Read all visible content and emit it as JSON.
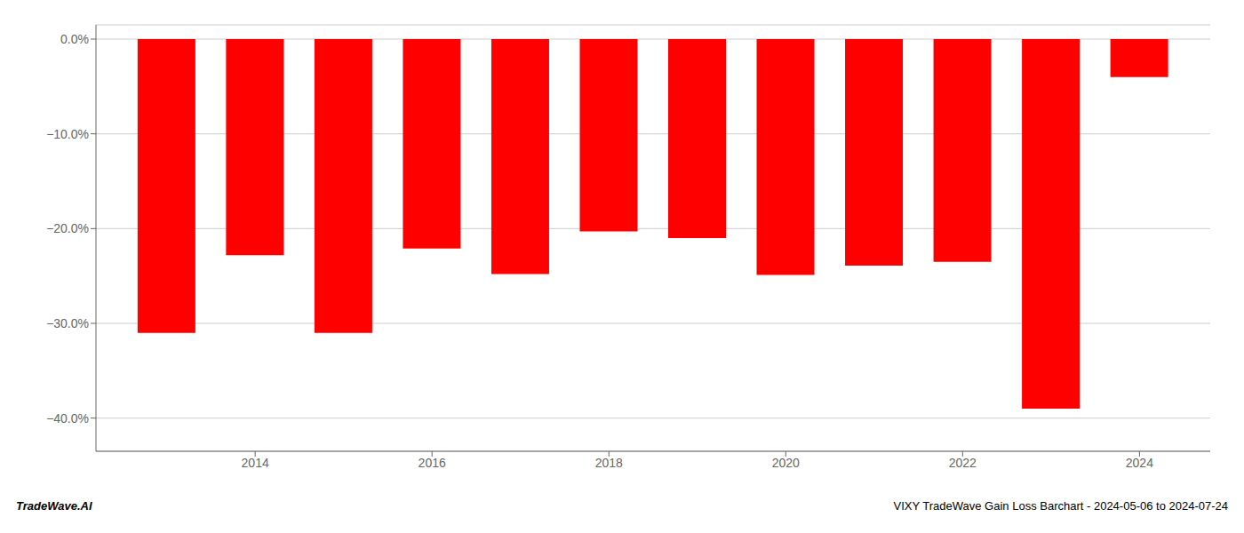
{
  "chart_data": {
    "type": "bar",
    "x": [
      2013,
      2014,
      2015,
      2016,
      2017,
      2018,
      2019,
      2020,
      2021,
      2022,
      2023,
      2024
    ],
    "values": [
      -0.31,
      -0.228,
      -0.31,
      -0.221,
      -0.248,
      -0.203,
      -0.21,
      -0.249,
      -0.239,
      -0.235,
      -0.39,
      -0.04
    ],
    "color": "#ff0000",
    "xlim": [
      2012.2,
      2024.8
    ],
    "xticks": [
      2014,
      2016,
      2018,
      2020,
      2022,
      2024
    ],
    "ylim": [
      -0.435,
      0.015
    ],
    "yticks": [
      {
        "value": 0.0,
        "label": "0.0%"
      },
      {
        "value": -0.1,
        "label": "−10.0%"
      },
      {
        "value": -0.2,
        "label": "−20.0%"
      },
      {
        "value": -0.3,
        "label": "−30.0%"
      },
      {
        "value": -0.4,
        "label": "−40.0%"
      }
    ],
    "grid": true,
    "annotations": [
      "TradeWave.AI",
      "VIXY TradeWave Gain Loss Barchart - 2024-05-06 to 2024-07-24"
    ]
  }
}
